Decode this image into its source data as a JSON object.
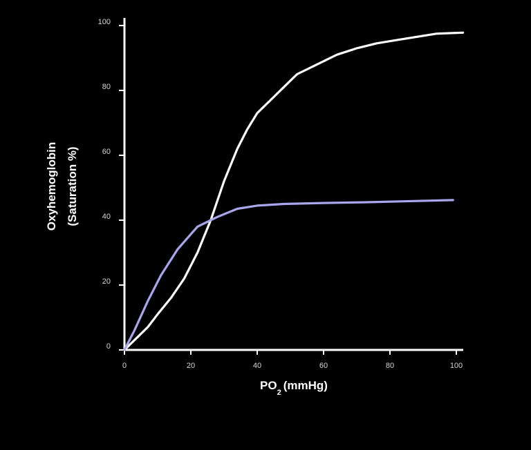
{
  "chart_data": {
    "type": "line",
    "title": "",
    "xlabel": {
      "main": "PO",
      "subscript": "2",
      "suffix": "(mmHg)"
    },
    "ylabel": [
      "Oxyhemoglobin",
      "(Saturation %)"
    ],
    "xlim": [
      0,
      102
    ],
    "ylim": [
      0,
      100
    ],
    "xticks": [
      "0",
      "20",
      "40",
      "60",
      "80",
      "100"
    ],
    "yticks": [
      "0",
      "20",
      "40",
      "60",
      "80",
      "100"
    ],
    "grid": false,
    "colors": {
      "background": "#000000",
      "axis": "#ffffff"
    },
    "series": [
      {
        "color": "#ffffff",
        "points": [
          [
            0,
            0
          ],
          [
            4,
            4
          ],
          [
            7,
            7
          ],
          [
            10,
            11
          ],
          [
            14,
            16
          ],
          [
            18,
            22
          ],
          [
            22,
            30
          ],
          [
            26,
            40
          ],
          [
            30,
            52
          ],
          [
            34,
            62
          ],
          [
            37,
            68
          ],
          [
            40,
            73
          ],
          [
            44,
            77
          ],
          [
            48,
            81
          ],
          [
            52,
            85
          ],
          [
            58,
            88
          ],
          [
            64,
            91
          ],
          [
            70,
            93
          ],
          [
            76,
            94.5
          ],
          [
            82,
            95.5
          ],
          [
            88,
            96.5
          ],
          [
            94,
            97.5
          ],
          [
            102,
            97.8
          ]
        ]
      },
      {
        "color": "#aaa6ee",
        "points": [
          [
            0,
            0
          ],
          [
            3,
            6
          ],
          [
            7,
            15
          ],
          [
            11,
            23
          ],
          [
            16,
            31
          ],
          [
            22,
            38
          ],
          [
            28,
            41
          ],
          [
            34,
            43.5
          ],
          [
            40,
            44.5
          ],
          [
            48,
            45
          ],
          [
            60,
            45.3
          ],
          [
            72,
            45.5
          ],
          [
            84,
            45.8
          ],
          [
            99,
            46.2
          ]
        ]
      }
    ]
  }
}
